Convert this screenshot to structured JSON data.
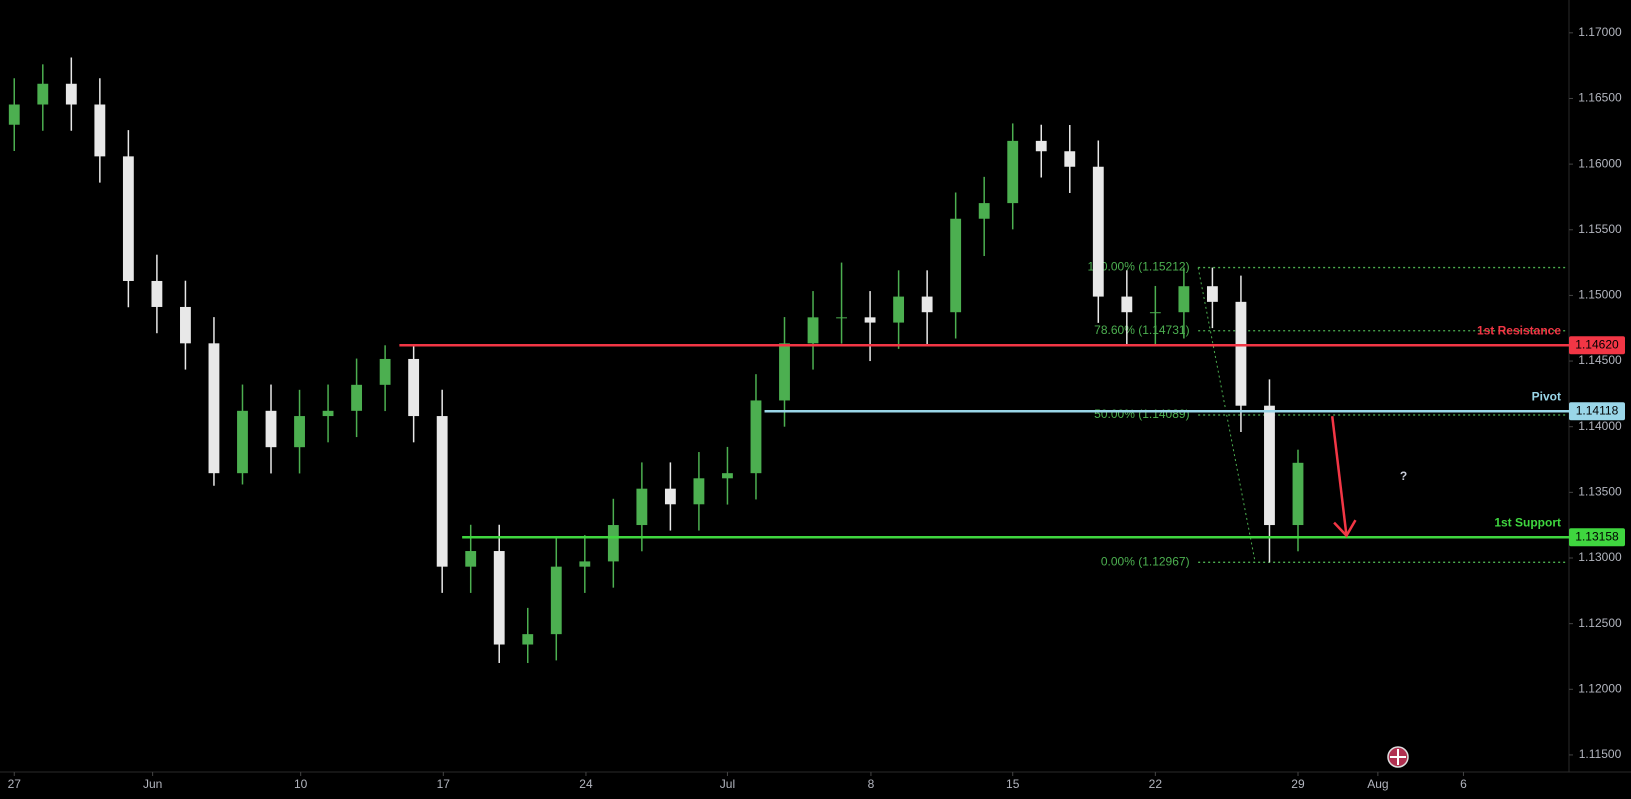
{
  "chart_data": {
    "type": "candlestick",
    "up_color": "#4caf50",
    "down_color": "#e8e8e8",
    "open": [
      1.163,
      1.16454,
      1.16612,
      1.16454,
      1.16059,
      1.1511,
      1.14912,
      1.14635,
      1.13646,
      1.14121,
      1.13844,
      1.14081,
      1.14121,
      1.14319,
      1.14516,
      1.14081,
      1.12934,
      1.13053,
      1.12341,
      1.1242,
      1.12934,
      1.12974,
      1.13251,
      1.13528,
      1.13409,
      1.13607,
      1.13646,
      1.142,
      1.14635,
      1.14833,
      1.14833,
      1.14793,
      1.14991,
      1.14872,
      1.15584,
      1.15703,
      1.16177,
      1.16098,
      1.1598,
      1.14991,
      1.14872,
      1.14872,
      1.1507,
      1.14951,
      1.1416,
      1.13251
    ],
    "high": [
      1.16654,
      1.1676,
      1.16812,
      1.16654,
      1.16259,
      1.1531,
      1.15112,
      1.14835,
      1.14321,
      1.14321,
      1.14281,
      1.14321,
      1.14519,
      1.1462,
      1.1462,
      1.14281,
      1.13253,
      1.13253,
      1.1262,
      1.13158,
      1.13174,
      1.13451,
      1.13728,
      1.13728,
      1.13807,
      1.13846,
      1.144,
      1.14835,
      1.15033,
      1.1525,
      1.15033,
      1.15191,
      1.15191,
      1.15784,
      1.15903,
      1.1631,
      1.163,
      1.16298,
      1.1618,
      1.15191,
      1.15072,
      1.15212,
      1.15212,
      1.15151,
      1.1436,
      1.13825
    ],
    "low": [
      1.161,
      1.16254,
      1.16254,
      1.15859,
      1.1491,
      1.14712,
      1.14435,
      1.1355,
      1.1356,
      1.13644,
      1.13644,
      1.13881,
      1.13921,
      1.14119,
      1.13881,
      1.12734,
      1.12734,
      1.122,
      1.122,
      1.1222,
      1.12734,
      1.12774,
      1.13051,
      1.13209,
      1.13209,
      1.13407,
      1.13446,
      1.14,
      1.14435,
      1.14633,
      1.145,
      1.14593,
      1.1462,
      1.14672,
      1.153,
      1.15503,
      1.15898,
      1.1578,
      1.14791,
      1.1462,
      1.1462,
      1.14672,
      1.14751,
      1.1396,
      1.12967,
      1.13051
    ],
    "close": [
      1.16454,
      1.16612,
      1.16454,
      1.16059,
      1.1511,
      1.14912,
      1.14635,
      1.13646,
      1.14121,
      1.13844,
      1.14081,
      1.14121,
      1.14319,
      1.14516,
      1.14081,
      1.12934,
      1.13053,
      1.12341,
      1.1242,
      1.12934,
      1.12974,
      1.13251,
      1.13528,
      1.13409,
      1.13607,
      1.13646,
      1.142,
      1.14635,
      1.14833,
      1.14833,
      1.14793,
      1.14991,
      1.14872,
      1.15584,
      1.15703,
      1.16177,
      1.16098,
      1.1598,
      1.14991,
      1.14872,
      1.14872,
      1.1507,
      1.14951,
      1.1416,
      1.13251,
      1.13725
    ],
    "xlim": [
      -0.5,
      54.5
    ],
    "xticks": [
      {
        "value": 0,
        "label": "27"
      },
      {
        "value": 4.85,
        "label": "Jun"
      },
      {
        "value": 10.04,
        "label": "10"
      },
      {
        "value": 15.04,
        "label": "17"
      },
      {
        "value": 20.04,
        "label": "24"
      },
      {
        "value": 25,
        "label": "Jul"
      },
      {
        "value": 30.03,
        "label": "8"
      },
      {
        "value": 35,
        "label": "15"
      },
      {
        "value": 40,
        "label": "22"
      },
      {
        "value": 45,
        "label": "29"
      },
      {
        "value": 47.8,
        "label": "Aug"
      },
      {
        "value": 50.8,
        "label": "6"
      }
    ],
    "ylim": [
      1.1137,
      1.1725
    ],
    "yticks": [
      {
        "value": 1.115,
        "label": "1.11500"
      },
      {
        "value": 1.12,
        "label": "1.12000"
      },
      {
        "value": 1.125,
        "label": "1.12500"
      },
      {
        "value": 1.13,
        "label": "1.13000"
      },
      {
        "value": 1.135,
        "label": "1.13500"
      },
      {
        "value": 1.14,
        "label": "1.14000"
      },
      {
        "value": 1.145,
        "label": "1.14500"
      },
      {
        "value": 1.15,
        "label": "1.15000"
      },
      {
        "value": 1.155,
        "label": "1.15500"
      },
      {
        "value": 1.16,
        "label": "1.16000"
      },
      {
        "value": 1.165,
        "label": "1.16500"
      },
      {
        "value": 1.17,
        "label": "1.17000"
      }
    ],
    "levels": [
      {
        "name": "1st Resistance",
        "value": 1.1462,
        "label": "1.14620",
        "color": "#f23645",
        "x_start": 13.5
      },
      {
        "name": "Pivot",
        "value": 1.14118,
        "label": "1.14118",
        "color": "#9ad6e8",
        "x_start": 26.3
      },
      {
        "name": "1st Support",
        "value": 1.13158,
        "label": "1.13158",
        "color": "#3fd63f",
        "x_start": 15.7
      }
    ],
    "fib": {
      "color": "#4caf50",
      "x_high": 41.5,
      "x_low": 43.5,
      "label_x": 41.2,
      "levels": [
        {
          "value": 1.15212,
          "label": "100.00% (1.15212)"
        },
        {
          "value": 1.14731,
          "label": "78.60% (1.14731)"
        },
        {
          "value": 1.14089,
          "label": "50.00% (1.14089)"
        },
        {
          "value": 1.12967,
          "label": "0.00% (1.12967)"
        }
      ]
    },
    "arrow": {
      "x": [
        46.2,
        46.7
      ],
      "y": [
        1.1408,
        1.1317
      ],
      "color": "#f23645"
    },
    "question": {
      "text": "?",
      "x": 48.7,
      "y": 1.1362
    }
  }
}
